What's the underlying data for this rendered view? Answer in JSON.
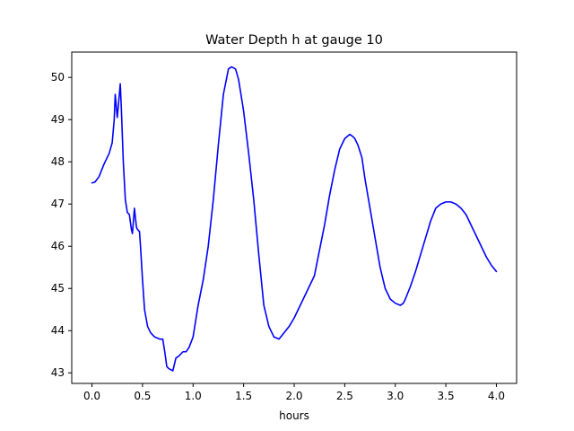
{
  "chart_data": {
    "type": "line",
    "title": "Water Depth h at gauge 10",
    "xlabel": "hours",
    "ylabel": "",
    "xlim": [
      -0.2,
      4.2
    ],
    "ylim": [
      42.75,
      50.6
    ],
    "grid": false,
    "legend": "none",
    "x_ticks": [
      0.0,
      0.5,
      1.0,
      1.5,
      2.0,
      2.5,
      3.0,
      3.5,
      4.0
    ],
    "x_tick_labels": [
      "0.0",
      "0.5",
      "1.0",
      "1.5",
      "2.0",
      "2.5",
      "3.0",
      "3.5",
      "4.0"
    ],
    "y_ticks": [
      43,
      44,
      45,
      46,
      47,
      48,
      49,
      50
    ],
    "y_tick_labels": [
      "43",
      "44",
      "45",
      "46",
      "47",
      "48",
      "49",
      "50"
    ],
    "series": [
      {
        "color": "#0000ff",
        "x": [
          0.0,
          0.03,
          0.07,
          0.12,
          0.17,
          0.2,
          0.22,
          0.23,
          0.25,
          0.26,
          0.28,
          0.29,
          0.31,
          0.33,
          0.35,
          0.37,
          0.39,
          0.4,
          0.42,
          0.44,
          0.45,
          0.47,
          0.48,
          0.5,
          0.52,
          0.55,
          0.58,
          0.62,
          0.67,
          0.7,
          0.72,
          0.74,
          0.76,
          0.8,
          0.83,
          0.86,
          0.9,
          0.93,
          0.96,
          1.0,
          1.05,
          1.1,
          1.15,
          1.2,
          1.25,
          1.3,
          1.35,
          1.38,
          1.42,
          1.45,
          1.5,
          1.55,
          1.6,
          1.65,
          1.7,
          1.75,
          1.8,
          1.85,
          1.9,
          1.95,
          2.0,
          2.05,
          2.1,
          2.15,
          2.2,
          2.25,
          2.3,
          2.35,
          2.4,
          2.45,
          2.5,
          2.55,
          2.58,
          2.6,
          2.63,
          2.67,
          2.7,
          2.75,
          2.8,
          2.85,
          2.9,
          2.95,
          3.0,
          3.05,
          3.08,
          3.1,
          3.15,
          3.2,
          3.25,
          3.3,
          3.35,
          3.4,
          3.45,
          3.5,
          3.55,
          3.6,
          3.65,
          3.7,
          3.75,
          3.8,
          3.85,
          3.9,
          3.95,
          4.0
        ],
        "y": [
          47.5,
          47.52,
          47.65,
          47.95,
          48.2,
          48.45,
          49.0,
          49.6,
          49.05,
          49.3,
          49.85,
          49.3,
          48.0,
          47.1,
          46.8,
          46.75,
          46.4,
          46.3,
          46.9,
          46.45,
          46.4,
          46.35,
          46.0,
          45.2,
          44.5,
          44.1,
          43.95,
          43.85,
          43.8,
          43.8,
          43.5,
          43.15,
          43.1,
          43.05,
          43.35,
          43.4,
          43.5,
          43.5,
          43.6,
          43.85,
          44.6,
          45.2,
          46.0,
          47.1,
          48.4,
          49.6,
          50.2,
          50.25,
          50.2,
          49.95,
          49.2,
          48.2,
          47.1,
          45.8,
          44.6,
          44.1,
          43.85,
          43.8,
          43.95,
          44.1,
          44.3,
          44.55,
          44.8,
          45.05,
          45.3,
          45.9,
          46.5,
          47.2,
          47.8,
          48.3,
          48.55,
          48.65,
          48.6,
          48.55,
          48.4,
          48.1,
          47.6,
          46.9,
          46.2,
          45.5,
          45.0,
          44.75,
          44.65,
          44.6,
          44.65,
          44.75,
          45.05,
          45.4,
          45.8,
          46.2,
          46.6,
          46.9,
          47.0,
          47.05,
          47.05,
          47.0,
          46.9,
          46.75,
          46.5,
          46.25,
          46.0,
          45.75,
          45.55,
          45.4
        ]
      }
    ]
  }
}
